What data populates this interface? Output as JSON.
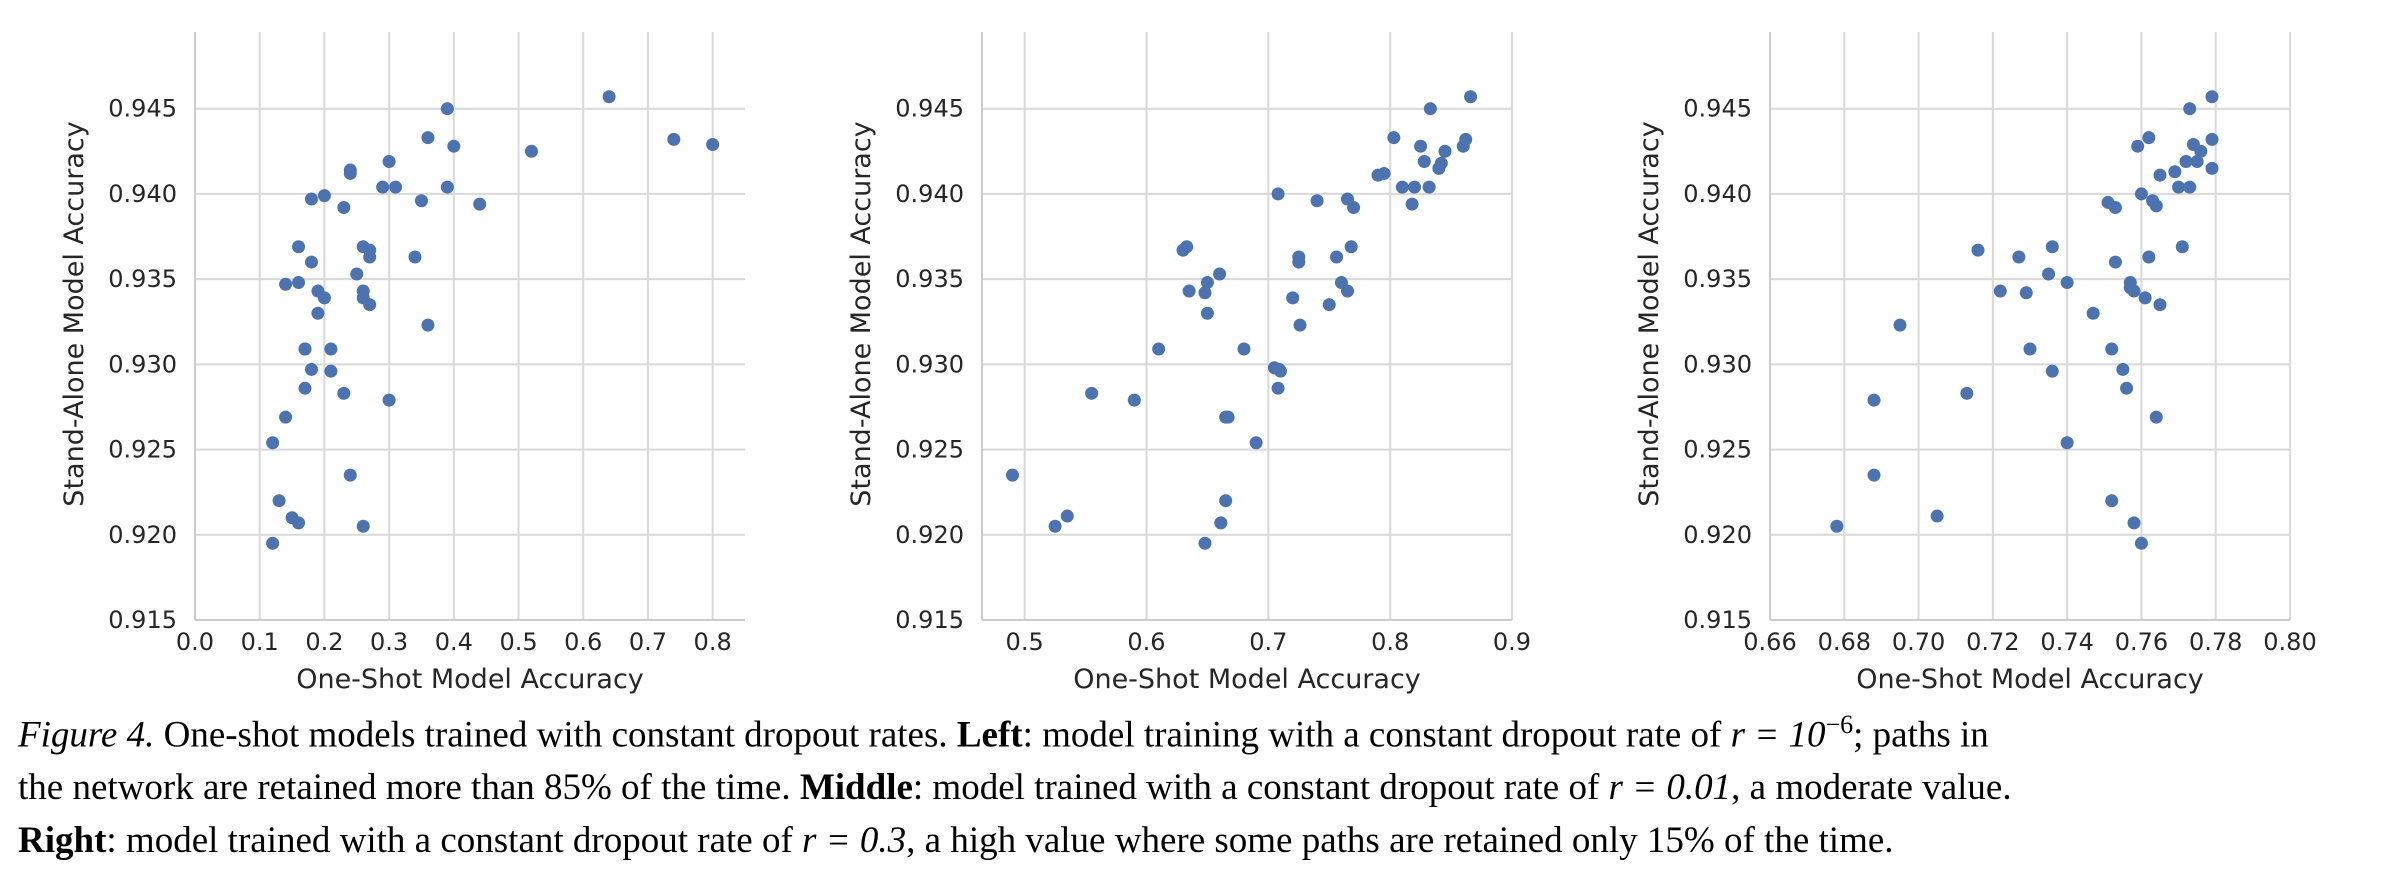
{
  "colors": {
    "point": "#4c72b0",
    "grid": "#d9d9d9",
    "spine": "#cccccc"
  },
  "chart_data": [
    {
      "type": "scatter",
      "panel": "left",
      "title": "",
      "xlabel": "One-Shot Model Accuracy",
      "ylabel": "Stand-Alone Model Accuracy",
      "xlim": [
        0.0,
        0.85
      ],
      "ylim": [
        0.915,
        0.9495
      ],
      "xticks": [
        0.0,
        0.1,
        0.2,
        0.3,
        0.4,
        0.5,
        0.6,
        0.7,
        0.8
      ],
      "xtick_labels": [
        "0.0",
        "0.1",
        "0.2",
        "0.3",
        "0.4",
        "0.5",
        "0.6",
        "0.7",
        "0.8"
      ],
      "yticks": [
        0.915,
        0.92,
        0.925,
        0.93,
        0.935,
        0.94,
        0.945
      ],
      "ytick_labels": [
        "0.915",
        "0.920",
        "0.925",
        "0.930",
        "0.935",
        "0.940",
        "0.945"
      ],
      "grid": true,
      "x": [
        0.12,
        0.12,
        0.13,
        0.14,
        0.15,
        0.16,
        0.17,
        0.14,
        0.16,
        0.16,
        0.17,
        0.18,
        0.18,
        0.19,
        0.19,
        0.2,
        0.2,
        0.21,
        0.21,
        0.18,
        0.17,
        0.23,
        0.23,
        0.24,
        0.24,
        0.24,
        0.25,
        0.26,
        0.26,
        0.26,
        0.27,
        0.27,
        0.27,
        0.26,
        0.29,
        0.3,
        0.31,
        0.3,
        0.34,
        0.35,
        0.36,
        0.36,
        0.39,
        0.39,
        0.4,
        0.44,
        0.52,
        0.64,
        0.74,
        0.8
      ],
      "y": [
        0.9195,
        0.9254,
        0.922,
        0.9269,
        0.921,
        0.9207,
        0.9286,
        0.9347,
        0.9369,
        0.9348,
        0.9309,
        0.936,
        0.9297,
        0.933,
        0.9343,
        0.9339,
        0.9399,
        0.9296,
        0.9309,
        0.9397,
        0.9309,
        0.9283,
        0.9392,
        0.9412,
        0.9414,
        0.9235,
        0.9353,
        0.9205,
        0.9369,
        0.9343,
        0.9367,
        0.9363,
        0.9335,
        0.9339,
        0.9404,
        0.9419,
        0.9404,
        0.9279,
        0.9363,
        0.9396,
        0.9323,
        0.9433,
        0.9404,
        0.945,
        0.9428,
        0.9394,
        0.9425,
        0.9457,
        0.9432,
        0.9429
      ]
    },
    {
      "type": "scatter",
      "panel": "middle",
      "title": "",
      "xlabel": "One-Shot Model Accuracy",
      "ylabel": "Stand-Alone Model Accuracy",
      "xlim": [
        0.465,
        0.9
      ],
      "ylim": [
        0.915,
        0.9495
      ],
      "xticks": [
        0.5,
        0.6,
        0.7,
        0.8,
        0.9
      ],
      "xtick_labels": [
        "0.5",
        "0.6",
        "0.7",
        "0.8",
        "0.9"
      ],
      "yticks": [
        0.915,
        0.92,
        0.925,
        0.93,
        0.935,
        0.94,
        0.945
      ],
      "ytick_labels": [
        "0.915",
        "0.920",
        "0.925",
        "0.930",
        "0.935",
        "0.940",
        "0.945"
      ],
      "grid": true,
      "x": [
        0.49,
        0.525,
        0.535,
        0.555,
        0.59,
        0.61,
        0.63,
        0.633,
        0.635,
        0.648,
        0.65,
        0.65,
        0.66,
        0.648,
        0.661,
        0.665,
        0.665,
        0.667,
        0.68,
        0.69,
        0.705,
        0.708,
        0.709,
        0.708,
        0.71,
        0.72,
        0.725,
        0.725,
        0.726,
        0.74,
        0.75,
        0.756,
        0.76,
        0.765,
        0.765,
        0.768,
        0.77,
        0.79,
        0.795,
        0.803,
        0.81,
        0.818,
        0.82,
        0.825,
        0.828,
        0.832,
        0.833,
        0.84,
        0.842,
        0.845,
        0.86,
        0.862,
        0.866
      ],
      "y": [
        0.9235,
        0.9205,
        0.9211,
        0.9283,
        0.9279,
        0.9309,
        0.9367,
        0.9369,
        0.9343,
        0.9342,
        0.9348,
        0.933,
        0.9353,
        0.9195,
        0.9207,
        0.922,
        0.9269,
        0.9269,
        0.9309,
        0.9254,
        0.9298,
        0.9286,
        0.9297,
        0.94,
        0.9296,
        0.9339,
        0.9363,
        0.936,
        0.9323,
        0.9396,
        0.9335,
        0.9363,
        0.9348,
        0.9343,
        0.9397,
        0.9369,
        0.9392,
        0.9411,
        0.9412,
        0.9433,
        0.9404,
        0.9394,
        0.9404,
        0.9428,
        0.9419,
        0.9404,
        0.945,
        0.9415,
        0.9418,
        0.9425,
        0.9428,
        0.9432,
        0.9457
      ]
    },
    {
      "type": "scatter",
      "panel": "right",
      "title": "",
      "xlabel": "One-Shot Model Accuracy",
      "ylabel": "Stand-Alone Model Accuracy",
      "xlim": [
        0.66,
        0.8
      ],
      "ylim": [
        0.915,
        0.9495
      ],
      "xticks": [
        0.66,
        0.68,
        0.7,
        0.72,
        0.74,
        0.76,
        0.78,
        0.8
      ],
      "xtick_labels": [
        "0.66",
        "0.68",
        "0.70",
        "0.72",
        "0.74",
        "0.76",
        "0.78",
        "0.80"
      ],
      "yticks": [
        0.915,
        0.92,
        0.925,
        0.93,
        0.935,
        0.94,
        0.945
      ],
      "ytick_labels": [
        "0.915",
        "0.920",
        "0.925",
        "0.930",
        "0.935",
        "0.940",
        "0.945"
      ],
      "grid": true,
      "x": [
        0.678,
        0.688,
        0.688,
        0.695,
        0.705,
        0.713,
        0.716,
        0.722,
        0.727,
        0.729,
        0.73,
        0.735,
        0.736,
        0.736,
        0.74,
        0.74,
        0.747,
        0.751,
        0.752,
        0.752,
        0.753,
        0.753,
        0.755,
        0.756,
        0.757,
        0.757,
        0.758,
        0.758,
        0.759,
        0.76,
        0.76,
        0.761,
        0.762,
        0.762,
        0.763,
        0.764,
        0.764,
        0.765,
        0.765,
        0.769,
        0.77,
        0.771,
        0.772,
        0.773,
        0.773,
        0.774,
        0.775,
        0.776,
        0.779,
        0.779,
        0.779
      ],
      "y": [
        0.9205,
        0.9279,
        0.9235,
        0.9323,
        0.9211,
        0.9283,
        0.9367,
        0.9343,
        0.9363,
        0.9342,
        0.9309,
        0.9353,
        0.9369,
        0.9296,
        0.9254,
        0.9348,
        0.933,
        0.9395,
        0.9309,
        0.922,
        0.936,
        0.9392,
        0.9297,
        0.9286,
        0.9348,
        0.9345,
        0.9207,
        0.9343,
        0.9428,
        0.94,
        0.9195,
        0.9339,
        0.9433,
        0.9363,
        0.9396,
        0.9269,
        0.9393,
        0.9411,
        0.9335,
        0.9413,
        0.9404,
        0.9369,
        0.9419,
        0.9404,
        0.945,
        0.9429,
        0.9419,
        0.9425,
        0.9457,
        0.9432,
        0.9415
      ]
    }
  ],
  "caption": {
    "line1": {
      "figure_label": "Figure 4.",
      "text_a": " One-shot models trained with constant dropout rates. ",
      "bold": "Left",
      "text_b": ": model training with a constant dropout rate of ",
      "math": "r = 10",
      "math_sup": "−6",
      "text_c": "; paths in"
    },
    "line2": {
      "text_a": "the network are retained more than 85% of the time. ",
      "bold": "Middle",
      "text_b": ": model trained with a constant dropout rate of ",
      "math": "r = 0.01",
      "text_c": ", a moderate value."
    },
    "line3": {
      "bold": "Right",
      "text_a": ": model trained with a constant dropout rate of ",
      "math": "r = 0.3",
      "text_b": ", a high value where some paths are retained only 15% of the time."
    }
  }
}
